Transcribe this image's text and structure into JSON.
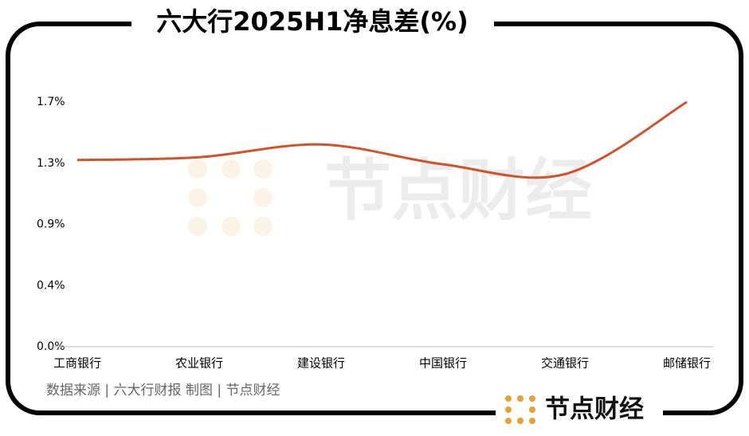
{
  "chart_data": {
    "type": "line",
    "title": "六大行2025H1净息差(%)",
    "categories": [
      "工商银行",
      "农业银行",
      "建设银行",
      "中国银行",
      "交通银行",
      "邮储银行"
    ],
    "series": [
      {
        "name": "净息差",
        "color": "#d2522a",
        "values": [
          1.32,
          1.34,
          1.43,
          1.29,
          1.22,
          1.73
        ]
      }
    ],
    "ylim": [
      0,
      1.73
    ],
    "yticks": [
      {
        "value": 0,
        "label": "0.0%"
      },
      {
        "value": 0.4325,
        "label": "0.4%"
      },
      {
        "value": 0.865,
        "label": "0.9%"
      },
      {
        "value": 1.2975,
        "label": "1.3%"
      },
      {
        "value": 1.73,
        "label": "1.7%"
      }
    ],
    "source": "数据来源 | 六大行财报  制图 | 节点财经",
    "watermark": "节点财经",
    "logo": "节点财经"
  }
}
